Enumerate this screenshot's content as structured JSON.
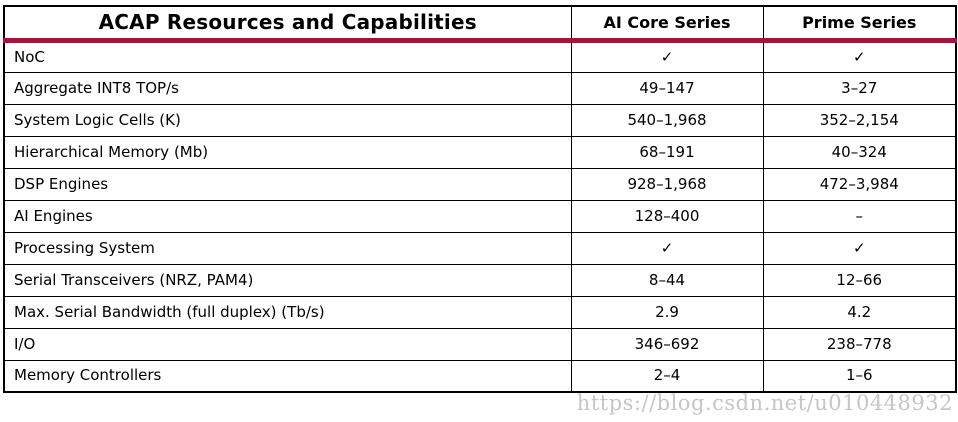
{
  "table": {
    "title": "ACAP Resources and Capabilities",
    "columns": [
      "AI Core Series",
      "Prime Series"
    ],
    "rows": [
      {
        "feature": "NoC",
        "ai_core": "✓",
        "prime": "✓"
      },
      {
        "feature": "Aggregate INT8 TOP/s",
        "ai_core": "49–147",
        "prime": "3–27"
      },
      {
        "feature": "System Logic Cells (K)",
        "ai_core": "540–1,968",
        "prime": "352–2,154"
      },
      {
        "feature": "Hierarchical Memory (Mb)",
        "ai_core": "68–191",
        "prime": "40–324"
      },
      {
        "feature": "DSP Engines",
        "ai_core": "928–1,968",
        "prime": "472–3,984"
      },
      {
        "feature": "AI Engines",
        "ai_core": "128–400",
        "prime": "–"
      },
      {
        "feature": "Processing System",
        "ai_core": "✓",
        "prime": "✓"
      },
      {
        "feature": "Serial Transceivers (NRZ, PAM4)",
        "ai_core": "8–44",
        "prime": "12–66"
      },
      {
        "feature": "Max. Serial Bandwidth (full duplex) (Tb/s)",
        "ai_core": "2.9",
        "prime": "4.2"
      },
      {
        "feature": "I/O",
        "ai_core": "346–692",
        "prime": "238–778"
      },
      {
        "feature": "Memory Controllers",
        "ai_core": "2–4",
        "prime": "1–6"
      }
    ]
  },
  "watermark": {
    "text": "https://blog.csdn.net/u010448932"
  },
  "colors": {
    "accent": "#a8103d",
    "border": "#000000",
    "text": "#000000",
    "watermark": "#c6c6c6",
    "background": "#ffffff"
  }
}
